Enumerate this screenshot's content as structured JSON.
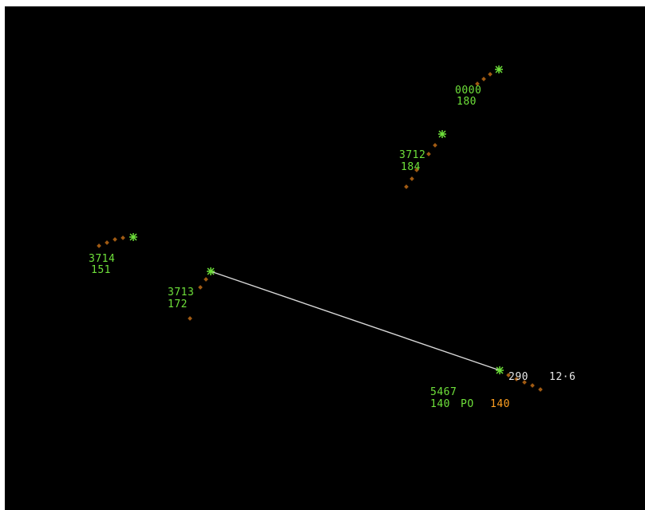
{
  "colors": {
    "background": "#000000",
    "target": "#6ee03a",
    "history_dot": "#a05a12",
    "range_bearing_line": "#d8d8d8",
    "range_bearing_text": "#e6e6e6",
    "alt_alert": "#ffa020"
  },
  "icons": {
    "target_symbol": "asterisk-icon",
    "history_symbol": "history-dot-icon"
  },
  "range_bearing": {
    "bearing": "290",
    "distance": "12·6"
  },
  "aircraft": [
    {
      "id": "ac-0000",
      "code": "0000",
      "alt": "180"
    },
    {
      "id": "ac-3712",
      "code": "3712",
      "alt": "184"
    },
    {
      "id": "ac-3714",
      "code": "3714",
      "alt": "151"
    },
    {
      "id": "ac-3713",
      "code": "3713",
      "alt": "172"
    },
    {
      "id": "ac-5467",
      "code": "5467",
      "alt": "140",
      "flight_rule": "PO",
      "assigned_alt": "140"
    }
  ]
}
